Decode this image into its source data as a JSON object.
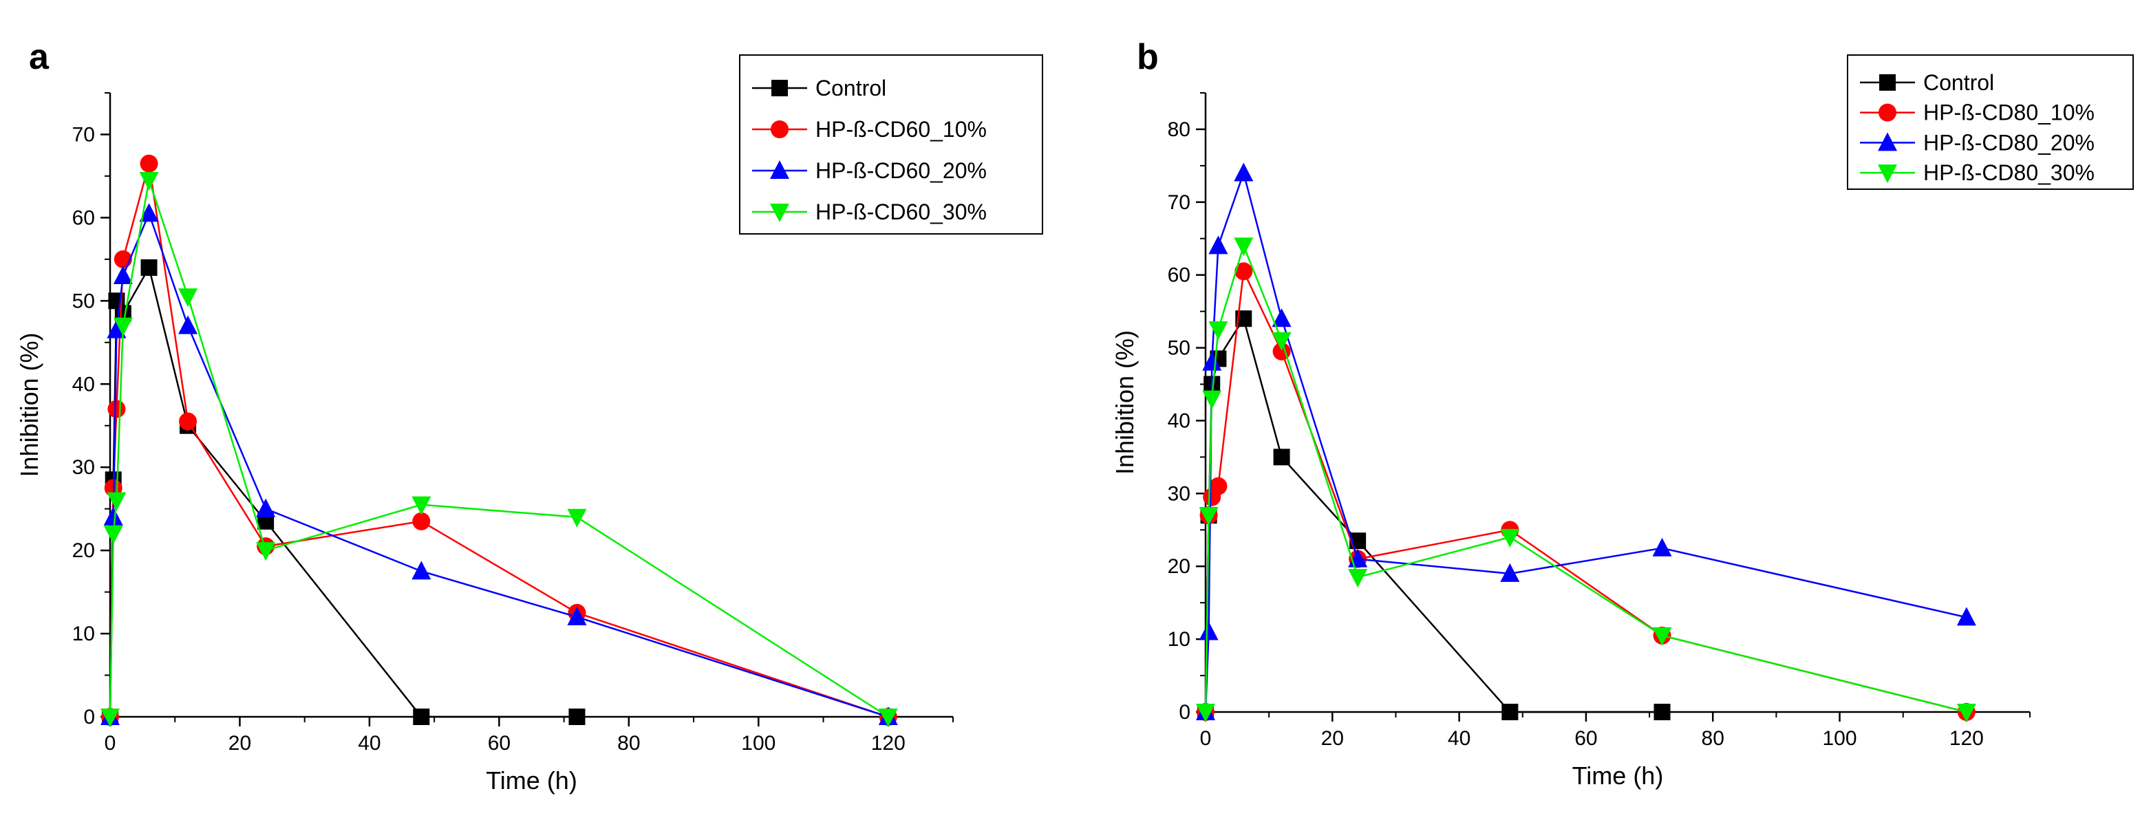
{
  "chart_data": [
    {
      "type": "line",
      "panel_label": "a",
      "xlabel": "Time (h)",
      "ylabel": "Inhibition (%)",
      "xlim": [
        0,
        130
      ],
      "ylim": [
        0,
        75
      ],
      "xticks": [
        0,
        20,
        40,
        60,
        80,
        100,
        120
      ],
      "yticks": [
        0,
        10,
        20,
        30,
        40,
        50,
        60,
        70
      ],
      "grid": false,
      "legend_position": "top-right",
      "series": [
        {
          "name": "Control",
          "color": "#000000",
          "marker": "square",
          "x": [
            0,
            0.5,
            1,
            2,
            6,
            12,
            24,
            48,
            72
          ],
          "y": [
            0,
            28.5,
            50,
            48.5,
            54,
            35,
            23.5,
            0,
            0
          ]
        },
        {
          "name": "HP-ß-CD60_10%",
          "color": "#ff0000",
          "marker": "circle",
          "x": [
            0,
            0.5,
            1,
            2,
            6,
            12,
            24,
            48,
            72,
            120
          ],
          "y": [
            0,
            27.5,
            37,
            55,
            66.5,
            35.5,
            20.5,
            23.5,
            12.5,
            0
          ]
        },
        {
          "name": "HP-ß-CD60_20%",
          "color": "#0000ff",
          "marker": "triangle-up",
          "x": [
            0,
            0.5,
            1,
            2,
            6,
            12,
            24,
            48,
            72,
            120
          ],
          "y": [
            0,
            24,
            46.5,
            53,
            60.5,
            47,
            25,
            17.5,
            12,
            0
          ]
        },
        {
          "name": "HP-ß-CD60_30%",
          "color": "#00ee00",
          "marker": "triangle-down",
          "x": [
            0,
            0.5,
            1,
            2,
            6,
            12,
            24,
            48,
            72,
            120
          ],
          "y": [
            0,
            22,
            26,
            47,
            64.5,
            50.5,
            20,
            25.5,
            24,
            0
          ]
        }
      ]
    },
    {
      "type": "line",
      "panel_label": "b",
      "xlabel": "Time (h)",
      "ylabel": "Inhibition (%)",
      "xlim": [
        0,
        130
      ],
      "ylim": [
        0,
        85
      ],
      "xticks": [
        0,
        20,
        40,
        60,
        80,
        100,
        120
      ],
      "yticks": [
        0,
        10,
        20,
        30,
        40,
        50,
        60,
        70,
        80
      ],
      "grid": false,
      "legend_position": "top-right",
      "series": [
        {
          "name": "Control",
          "color": "#000000",
          "marker": "square",
          "x": [
            0,
            0.5,
            1,
            2,
            6,
            12,
            24,
            48,
            72
          ],
          "y": [
            0,
            27,
            45,
            48.5,
            54,
            35,
            23.5,
            0,
            0
          ]
        },
        {
          "name": "HP-ß-CD80_10%",
          "color": "#ff0000",
          "marker": "circle",
          "x": [
            0,
            0.5,
            1,
            2,
            6,
            12,
            24,
            48,
            72,
            120
          ],
          "y": [
            0,
            27,
            29.5,
            31,
            60.5,
            49.5,
            21,
            25,
            10.5,
            0
          ]
        },
        {
          "name": "HP-ß-CD80_20%",
          "color": "#0000ff",
          "marker": "triangle-up",
          "x": [
            0,
            0.5,
            1,
            2,
            6,
            12,
            24,
            48,
            72,
            120
          ],
          "y": [
            0,
            11,
            48,
            64,
            74,
            54,
            21,
            19,
            22.5,
            13
          ]
        },
        {
          "name": "HP-ß-CD80_30%",
          "color": "#00ee00",
          "marker": "triangle-down",
          "x": [
            0,
            0.5,
            1,
            2,
            6,
            12,
            24,
            48,
            72,
            120
          ],
          "y": [
            0,
            27,
            43,
            52.5,
            64,
            51,
            18.5,
            24,
            10.5,
            0
          ]
        }
      ]
    }
  ]
}
